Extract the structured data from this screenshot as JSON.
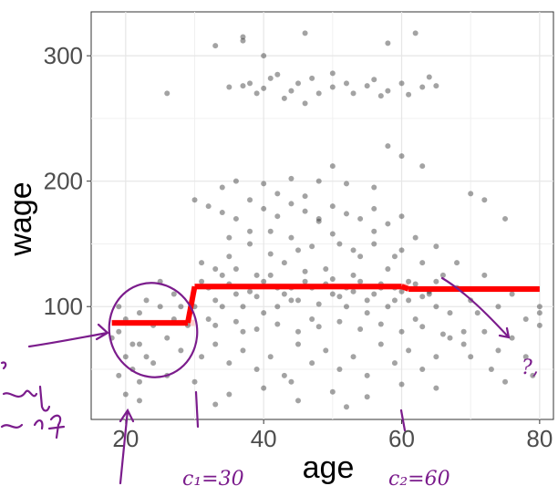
{
  "chart_data": {
    "type": "scatter",
    "title": "",
    "xlabel": "age",
    "ylabel": "wage",
    "xlim": [
      15,
      82
    ],
    "ylim": [
      10,
      335
    ],
    "x_ticks": [
      "20",
      "40",
      "60",
      "80"
    ],
    "y_ticks": [
      "100",
      "200",
      "300"
    ],
    "grid": true,
    "legend": "none",
    "colors": {
      "points": "#333333",
      "fit": "#ff0000",
      "ribbon": "#ff9999",
      "ink": "#7b1c8c"
    },
    "points_description_only": false,
    "points": [
      [
        33,
        308
      ],
      [
        37,
        312
      ],
      [
        37,
        315
      ],
      [
        40,
        300
      ],
      [
        46,
        318
      ],
      [
        58,
        310
      ],
      [
        62,
        318
      ],
      [
        26,
        270
      ],
      [
        35,
        275
      ],
      [
        37,
        276
      ],
      [
        39,
        270
      ],
      [
        41,
        282
      ],
      [
        42,
        285
      ],
      [
        44,
        272
      ],
      [
        45,
        278
      ],
      [
        47,
        282
      ],
      [
        48,
        270
      ],
      [
        50,
        275
      ],
      [
        52,
        278
      ],
      [
        53,
        270
      ],
      [
        55,
        276
      ],
      [
        56,
        281
      ],
      [
        58,
        272
      ],
      [
        60,
        278
      ],
      [
        61,
        269
      ],
      [
        63,
        275
      ],
      [
        65,
        276
      ],
      [
        46,
        262
      ],
      [
        50,
        286
      ],
      [
        40,
        274
      ],
      [
        38,
        278
      ],
      [
        43,
        266
      ],
      [
        57,
        268
      ],
      [
        64,
        283
      ],
      [
        58,
        228
      ],
      [
        60,
        220
      ],
      [
        63,
        212
      ],
      [
        50,
        212
      ],
      [
        36,
        200
      ],
      [
        40,
        198
      ],
      [
        44,
        202
      ],
      [
        48,
        200
      ],
      [
        52,
        198
      ],
      [
        56,
        195
      ],
      [
        34,
        195
      ],
      [
        70,
        190
      ],
      [
        72,
        185
      ],
      [
        75,
        170
      ],
      [
        42,
        190
      ],
      [
        46,
        188
      ],
      [
        30,
        185
      ],
      [
        19,
        80
      ],
      [
        20,
        90
      ],
      [
        21,
        70
      ],
      [
        22,
        95
      ],
      [
        23,
        60
      ],
      [
        24,
        85
      ],
      [
        25,
        100
      ],
      [
        26,
        75
      ],
      [
        27,
        110
      ],
      [
        28,
        65
      ],
      [
        20,
        60
      ],
      [
        21,
        50
      ],
      [
        19,
        45
      ],
      [
        22,
        40
      ],
      [
        24,
        55
      ],
      [
        26,
        45
      ],
      [
        25,
        120
      ],
      [
        23,
        105
      ],
      [
        27,
        90
      ],
      [
        28,
        100
      ],
      [
        29,
        85
      ],
      [
        18,
        75
      ],
      [
        19,
        100
      ],
      [
        22,
        70
      ],
      [
        31,
        120
      ],
      [
        32,
        90
      ],
      [
        33,
        130
      ],
      [
        34,
        100
      ],
      [
        35,
        140
      ],
      [
        36,
        110
      ],
      [
        37,
        80
      ],
      [
        38,
        150
      ],
      [
        39,
        125
      ],
      [
        40,
        95
      ],
      [
        41,
        160
      ],
      [
        42,
        115
      ],
      [
        43,
        135
      ],
      [
        44,
        105
      ],
      [
        45,
        145
      ],
      [
        46,
        120
      ],
      [
        47,
        90
      ],
      [
        48,
        170
      ],
      [
        49,
        130
      ],
      [
        50,
        110
      ],
      [
        51,
        150
      ],
      [
        52,
        100
      ],
      [
        53,
        125
      ],
      [
        54,
        140
      ],
      [
        55,
        95
      ],
      [
        56,
        160
      ],
      [
        57,
        115
      ],
      [
        58,
        130
      ],
      [
        59,
        105
      ],
      [
        60,
        145
      ],
      [
        61,
        120
      ],
      [
        62,
        90
      ],
      [
        63,
        135
      ],
      [
        64,
        110
      ],
      [
        65,
        100
      ],
      [
        66,
        125
      ],
      [
        67,
        95
      ],
      [
        68,
        115
      ],
      [
        69,
        80
      ],
      [
        70,
        105
      ],
      [
        31,
        60
      ],
      [
        33,
        70
      ],
      [
        35,
        55
      ],
      [
        37,
        65
      ],
      [
        39,
        50
      ],
      [
        41,
        60
      ],
      [
        43,
        45
      ],
      [
        45,
        70
      ],
      [
        47,
        55
      ],
      [
        49,
        65
      ],
      [
        51,
        50
      ],
      [
        53,
        60
      ],
      [
        55,
        45
      ],
      [
        57,
        70
      ],
      [
        59,
        55
      ],
      [
        61,
        65
      ],
      [
        63,
        50
      ],
      [
        65,
        60
      ],
      [
        67,
        75
      ],
      [
        70,
        60
      ],
      [
        32,
        180
      ],
      [
        34,
        175
      ],
      [
        36,
        170
      ],
      [
        38,
        185
      ],
      [
        40,
        178
      ],
      [
        42,
        172
      ],
      [
        44,
        182
      ],
      [
        46,
        176
      ],
      [
        48,
        168
      ],
      [
        50,
        180
      ],
      [
        52,
        174
      ],
      [
        54,
        170
      ],
      [
        56,
        178
      ],
      [
        58,
        166
      ],
      [
        60,
        172
      ],
      [
        30,
        40
      ],
      [
        35,
        30
      ],
      [
        40,
        35
      ],
      [
        45,
        25
      ],
      [
        50,
        32
      ],
      [
        55,
        28
      ],
      [
        60,
        38
      ],
      [
        65,
        35
      ],
      [
        20,
        30
      ],
      [
        22,
        25
      ],
      [
        33,
        22
      ],
      [
        44,
        40
      ],
      [
        52,
        20
      ],
      [
        72,
        80
      ],
      [
        74,
        100
      ],
      [
        76,
        75
      ],
      [
        78,
        90
      ],
      [
        80,
        85
      ],
      [
        80,
        95
      ],
      [
        80,
        100
      ],
      [
        78,
        60
      ],
      [
        76,
        110
      ],
      [
        72,
        125
      ],
      [
        74,
        65
      ],
      [
        79,
        45
      ],
      [
        73,
        50
      ],
      [
        75,
        40
      ],
      [
        71,
        95
      ],
      [
        30,
        100
      ],
      [
        31,
        135
      ],
      [
        32,
        115
      ],
      [
        33,
        105
      ],
      [
        34,
        125
      ],
      [
        35,
        118
      ],
      [
        36,
        130
      ],
      [
        37,
        100
      ],
      [
        38,
        112
      ],
      [
        39,
        108
      ],
      [
        40,
        120
      ],
      [
        41,
        125
      ],
      [
        42,
        100
      ],
      [
        43,
        110
      ],
      [
        44,
        115
      ],
      [
        45,
        105
      ],
      [
        46,
        128
      ],
      [
        47,
        115
      ],
      [
        48,
        102
      ],
      [
        49,
        118
      ],
      [
        50,
        122
      ],
      [
        51,
        108
      ],
      [
        52,
        115
      ],
      [
        53,
        112
      ],
      [
        54,
        120
      ],
      [
        55,
        105
      ],
      [
        56,
        110
      ],
      [
        57,
        118
      ],
      [
        58,
        100
      ],
      [
        59,
        115
      ],
      [
        60,
        112
      ],
      [
        61,
        105
      ],
      [
        62,
        118
      ],
      [
        63,
        108
      ],
      [
        64,
        112
      ],
      [
        65,
        120
      ],
      [
        33,
        85
      ],
      [
        36,
        88
      ],
      [
        39,
        82
      ],
      [
        42,
        86
      ],
      [
        45,
        80
      ],
      [
        48,
        84
      ],
      [
        51,
        88
      ],
      [
        54,
        82
      ],
      [
        57,
        86
      ],
      [
        60,
        80
      ],
      [
        63,
        84
      ],
      [
        66,
        78
      ],
      [
        69,
        70
      ],
      [
        35,
        155
      ],
      [
        38,
        160
      ],
      [
        41,
        142
      ],
      [
        44,
        155
      ],
      [
        47,
        148
      ],
      [
        50,
        158
      ],
      [
        53,
        145
      ],
      [
        56,
        150
      ],
      [
        59,
        140
      ],
      [
        62,
        155
      ],
      [
        65,
        148
      ],
      [
        68,
        135
      ]
    ],
    "fit_segments": [
      {
        "x": [
          18,
          29
        ],
        "y": [
          87,
          87
        ]
      },
      {
        "x": [
          29,
          30
        ],
        "y": [
          87,
          116
        ]
      },
      {
        "x": [
          30,
          60
        ],
        "y": [
          116,
          116
        ]
      },
      {
        "x": [
          60,
          61
        ],
        "y": [
          116,
          114
        ]
      },
      {
        "x": [
          61,
          80
        ],
        "y": [
          114,
          114
        ]
      }
    ],
    "annotations": [
      "c₁=30",
      "c₂=60",
      "?,"
    ]
  }
}
